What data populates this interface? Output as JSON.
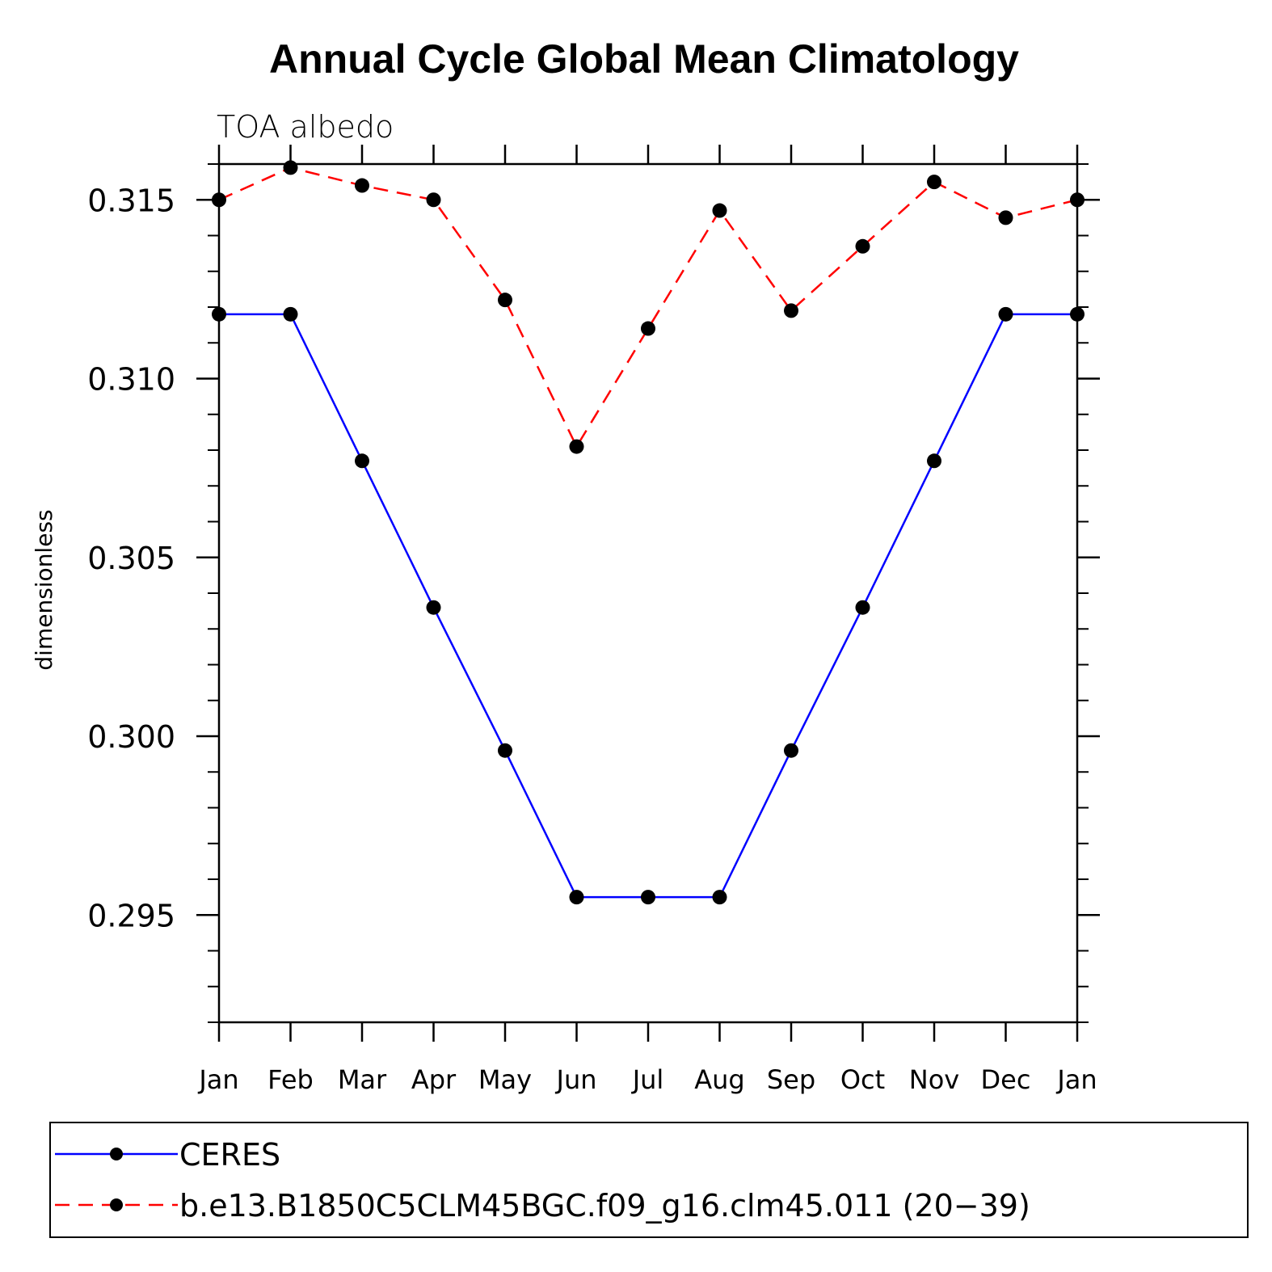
{
  "chart_data": {
    "type": "line",
    "title": "Annual Cycle Global Mean Climatology",
    "subtitle": "TOA albedo",
    "ylabel": "dimensionless",
    "xlabel": "",
    "categories": [
      "Jan",
      "Feb",
      "Mar",
      "Apr",
      "May",
      "Jun",
      "Jul",
      "Aug",
      "Sep",
      "Oct",
      "Nov",
      "Dec",
      "Jan"
    ],
    "ylim": [
      0.292,
      0.316
    ],
    "yticks": [
      0.295,
      0.3,
      0.305,
      0.31,
      0.315
    ],
    "ytick_labels": [
      "0.295",
      "0.300",
      "0.305",
      "0.310",
      "0.315"
    ],
    "series": [
      {
        "name": "CERES",
        "color": "#0000ff",
        "dash": "solid",
        "values": [
          0.3118,
          0.3118,
          0.3077,
          0.3036,
          0.2996,
          0.2955,
          0.2955,
          0.2955,
          0.2996,
          0.3036,
          0.3077,
          0.3118,
          0.3118
        ]
      },
      {
        "name": "b.e13.B1850C5CLM45BGC.f09_g16.clm45.011 (20−39)",
        "color": "#ff0000",
        "dash": "dashed",
        "values": [
          0.315,
          0.3159,
          0.3154,
          0.315,
          0.3122,
          0.3081,
          0.3114,
          0.3147,
          0.3119,
          0.3137,
          0.3155,
          0.3145,
          0.315
        ]
      }
    ],
    "legend_position": "bottom",
    "marker": "filled-circle",
    "marker_color": "#000000"
  }
}
